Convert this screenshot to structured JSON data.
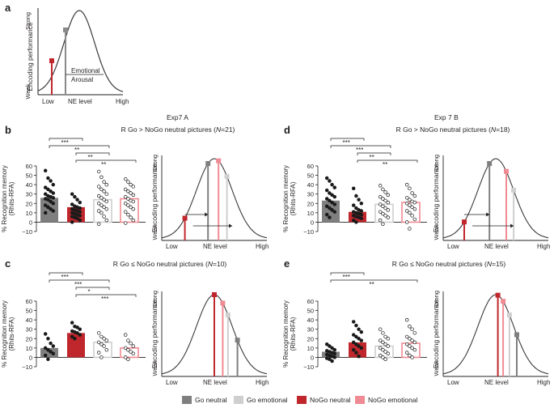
{
  "colors": {
    "go_neutral": "#7f7f7f",
    "go_emotional": "#cfcfcf",
    "nogo_neutral": "#c0272d",
    "nogo_emotional": "#f08b93",
    "curve": "#3a3a3a",
    "dots": "#1a1a1a"
  },
  "panel_a": {
    "label": "a",
    "ylabel": "Encoding performance",
    "y_strong": "Strong",
    "y_weak": "Weak",
    "x_low": "Low",
    "x_mid": "NE level",
    "x_high": "High",
    "emotional_label": "Emotional",
    "arousal_label": "Arousal"
  },
  "experiments": {
    "exp_a_title": "Exp7 A",
    "exp_b_title": "Exp 7 B"
  },
  "curve_labels": {
    "ylabel": "Encoding performance",
    "strong": "Strong",
    "weak": "Weak",
    "low": "Low",
    "mid": "NE level",
    "high": "High"
  },
  "bar_axis": {
    "ylabel_line1": "% Recognition memory",
    "ylabel_line2": "(Rhits-RFA)"
  },
  "legend": [
    {
      "label": "Go neutral",
      "color": "#7f7f7f"
    },
    {
      "label": "Go emotional",
      "color": "#cfcfcf"
    },
    {
      "label": "NoGo neutral",
      "color": "#c0272d"
    },
    {
      "label": "NoGo emotional",
      "color": "#f08b93"
    }
  ],
  "chart_data": [
    {
      "panel": "b",
      "type": "bar",
      "title_prefix": "R Go > NoGo neutral pictures (",
      "title_n": "N",
      "title_suffix": "=21)",
      "categories": [
        "Go neutral",
        "NoGo neutral",
        "Go emotional",
        "NoGo emotional"
      ],
      "values": [
        26,
        16,
        24,
        25
      ],
      "ylim": [
        -10,
        60
      ],
      "yticks": [
        "60",
        "50",
        "40",
        "30",
        "20",
        "10",
        "0",
        "−10"
      ],
      "significance": [
        {
          "label": "***",
          "from": 0,
          "to": 1
        },
        {
          "label": "**",
          "from": 0,
          "to": 2
        },
        {
          "label": "**",
          "from": 1,
          "to": 2
        },
        {
          "label": "**",
          "from": 1,
          "to": 3
        }
      ],
      "points": [
        [
          55,
          47,
          44,
          40,
          37,
          35,
          33,
          31,
          30,
          28,
          27,
          26,
          25,
          24,
          22,
          20,
          18,
          16,
          14,
          12,
          10
        ],
        [
          30,
          27,
          24,
          21,
          19,
          17,
          16,
          15,
          14,
          13,
          12,
          11,
          10,
          9,
          8,
          7,
          6,
          5,
          4,
          2,
          0
        ],
        [
          54,
          48,
          43,
          40,
          38,
          35,
          33,
          30,
          28,
          26,
          24,
          22,
          20,
          18,
          16,
          14,
          12,
          10,
          6,
          2,
          -2
        ],
        [
          46,
          43,
          40,
          38,
          35,
          33,
          31,
          29,
          27,
          25,
          23,
          22,
          20,
          18,
          16,
          14,
          11,
          8,
          5,
          2,
          -1
        ]
      ],
      "curve_markers": {
        "go_neutral": 0.44,
        "go_emotional": 0.62,
        "nogo_neutral": 0.22,
        "nogo_emotional": 0.54
      }
    },
    {
      "panel": "c",
      "type": "bar",
      "title_prefix": "R Go ≤ NoGo neutral pictures (",
      "title_n": "N",
      "title_suffix": "=10)",
      "categories": [
        "Go neutral",
        "NoGo neutral",
        "Go emotional",
        "NoGo emotional"
      ],
      "values": [
        10,
        26,
        16,
        10
      ],
      "ylim": [
        -10,
        60
      ],
      "yticks": [
        "60",
        "50",
        "40",
        "30",
        "20",
        "10",
        "0",
        "−10"
      ],
      "significance": [
        {
          "label": "***",
          "from": 0,
          "to": 1
        },
        {
          "label": "***",
          "from": 0,
          "to": 2
        },
        {
          "label": "*",
          "from": 1,
          "to": 2
        },
        {
          "label": "***",
          "from": 1,
          "to": 3
        }
      ],
      "points": [
        [
          25,
          20,
          15,
          12,
          10,
          8,
          6,
          4,
          2,
          -2
        ],
        [
          37,
          33,
          32,
          30,
          28,
          27,
          26,
          24,
          22,
          20
        ],
        [
          26,
          22,
          20,
          18,
          16,
          14,
          12,
          8,
          5,
          0
        ],
        [
          24,
          18,
          15,
          12,
          10,
          8,
          6,
          4,
          0,
          -2
        ]
      ],
      "curve_markers": {
        "nogo_neutral": 0.5,
        "nogo_emotional": 0.58,
        "go_emotional": 0.63,
        "go_neutral": 0.72
      }
    },
    {
      "panel": "d",
      "type": "bar",
      "title_prefix": "R Go > NoGo neutral pictures (",
      "title_n": "N",
      "title_suffix": "=18)",
      "categories": [
        "Go neutral",
        "NoGo neutral",
        "Go emotional",
        "NoGo emotional"
      ],
      "values": [
        23,
        11,
        19,
        21
      ],
      "ylim": [
        -10,
        60
      ],
      "yticks": [
        "60",
        "50",
        "40",
        "30",
        "20",
        "10",
        "0",
        "−10"
      ],
      "significance": [
        {
          "label": "***",
          "from": 0,
          "to": 1
        },
        {
          "label": "***",
          "from": 0,
          "to": 2
        },
        {
          "label": "**",
          "from": 1,
          "to": 2
        },
        {
          "label": "**",
          "from": 1,
          "to": 3
        }
      ],
      "points": [
        [
          47,
          44,
          40,
          37,
          34,
          31,
          29,
          27,
          25,
          23,
          21,
          19,
          17,
          15,
          13,
          11,
          8,
          5
        ],
        [
          36,
          28,
          24,
          20,
          18,
          15,
          13,
          12,
          11,
          10,
          9,
          8,
          7,
          6,
          5,
          4,
          2,
          0
        ],
        [
          39,
          35,
          32,
          29,
          27,
          25,
          23,
          21,
          19,
          17,
          15,
          13,
          11,
          9,
          7,
          5,
          2,
          -2
        ],
        [
          40,
          36,
          31,
          28,
          26,
          24,
          22,
          21,
          20,
          18,
          16,
          14,
          12,
          10,
          7,
          3,
          0,
          -7
        ]
      ],
      "curve_markers": {
        "go_neutral": 0.44,
        "nogo_emotional": 0.6,
        "go_emotional": 0.67,
        "nogo_neutral": 0.2
      }
    },
    {
      "panel": "e",
      "type": "bar",
      "title_prefix": "R Go ≤ NoGo neutral pictures (",
      "title_n": "N",
      "title_suffix": "=15)",
      "categories": [
        "Go neutral",
        "NoGo neutral",
        "Go emotional",
        "NoGo emotional"
      ],
      "values": [
        6,
        16,
        12,
        15
      ],
      "ylim": [
        -10,
        60
      ],
      "yticks": [
        "60",
        "50",
        "40",
        "30",
        "20",
        "10",
        "0",
        "−10"
      ],
      "significance": [
        {
          "label": "***",
          "from": 0,
          "to": 1
        },
        {
          "label": "**",
          "from": 0,
          "to": 3
        }
      ],
      "points": [
        [
          14,
          12,
          10,
          8,
          7,
          6,
          5,
          4,
          3,
          2,
          1,
          0,
          -1,
          -2,
          -4
        ],
        [
          38,
          34,
          30,
          27,
          24,
          22,
          20,
          18,
          16,
          14,
          12,
          10,
          8,
          5,
          1
        ],
        [
          30,
          26,
          22,
          20,
          18,
          16,
          14,
          12,
          10,
          8,
          6,
          4,
          2,
          0,
          -2
        ],
        [
          40,
          33,
          30,
          26,
          22,
          20,
          18,
          16,
          14,
          12,
          10,
          8,
          5,
          2,
          0
        ]
      ],
      "curve_markers": {
        "nogo_neutral": 0.52,
        "nogo_emotional": 0.57,
        "go_emotional": 0.63,
        "go_neutral": 0.7
      }
    }
  ]
}
